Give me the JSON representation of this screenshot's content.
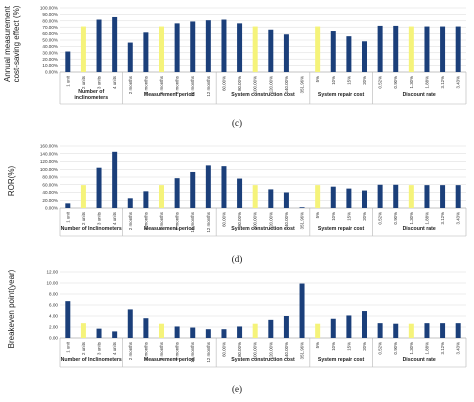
{
  "colors": {
    "dark": "#1b3f7a",
    "highlight": "#f5f37a",
    "grid": "#d9d9d9",
    "axis": "#9a9a9a",
    "separator": "#b5b5b5"
  },
  "x_categories": [
    "1 unit",
    "2 units",
    "3 units",
    "4 units",
    "2 months",
    "4 months",
    "6 months",
    "8 months",
    "10 months",
    "12 months",
    "60.00%",
    "80.00%",
    "100.00%",
    "120.00%",
    "140.00%",
    "351.96%",
    "5%",
    "10%",
    "15%",
    "20%",
    "0.52%",
    "0.90%",
    "1.30%",
    "1.88%",
    "3.12%",
    "3.43%"
  ],
  "groups": [
    {
      "label": "Number of Inclinometers",
      "label_c": "Number of\ninclinometers",
      "start": 0,
      "end": 3
    },
    {
      "label": "Measurement period",
      "start": 4,
      "end": 9
    },
    {
      "label": "System construction cost",
      "start": 10,
      "end": 15
    },
    {
      "label": "System repair cost",
      "start": 16,
      "end": 19
    },
    {
      "label": "Discount rate",
      "start": 20,
      "end": 25
    }
  ],
  "highlight_indices": [
    1,
    6,
    12,
    16,
    22
  ],
  "chart_data": [
    {
      "type": "bar",
      "panel_label": "(c)",
      "ylabel": "Annual measurement\ncost-saving effect (%)",
      "ylim": [
        0,
        100
      ],
      "yticks": [
        "0.00%",
        "10.00%",
        "20.00%",
        "30.00%",
        "40.00%",
        "50.00%",
        "60.00%",
        "70.00%",
        "80.00%",
        "90.00%",
        "100.00%"
      ],
      "ytick_values": [
        0,
        10,
        20,
        30,
        40,
        50,
        60,
        70,
        80,
        90,
        100
      ],
      "values": [
        32,
        71,
        82,
        86,
        46,
        62,
        71,
        76,
        79,
        81,
        82,
        76,
        71,
        66,
        59,
        null,
        71,
        64,
        56,
        48,
        72,
        72,
        71,
        71,
        71,
        71
      ]
    },
    {
      "type": "bar",
      "panel_label": "(d)",
      "ylabel": "ROR(%)",
      "ylim": [
        0,
        160
      ],
      "yticks": [
        "0.00%",
        "20.00%",
        "40.00%",
        "60.00%",
        "80.00%",
        "100.00%",
        "120.00%",
        "140.00%",
        "160.00%"
      ],
      "ytick_values": [
        0,
        20,
        40,
        60,
        80,
        100,
        120,
        140,
        160
      ],
      "values": [
        12,
        59,
        104,
        145,
        25,
        43,
        59,
        77,
        93,
        110,
        108,
        76,
        59,
        48,
        40,
        2,
        59,
        55,
        50,
        45,
        60,
        60,
        59,
        59,
        59,
        59
      ]
    },
    {
      "type": "bar",
      "panel_label": "(e)",
      "ylabel": "Breakeven point(year)",
      "ylim": [
        0,
        12
      ],
      "yticks": [
        "0.00",
        "2.00",
        "4.00",
        "6.00",
        "8.00",
        "10.00",
        "12.00"
      ],
      "ytick_values": [
        0,
        2,
        4,
        6,
        8,
        10,
        12
      ],
      "values": [
        6.7,
        2.7,
        1.7,
        1.2,
        5.2,
        3.6,
        2.6,
        2.1,
        1.9,
        1.6,
        1.6,
        2.1,
        2.6,
        3.3,
        4.0,
        9.9,
        2.6,
        3.5,
        4.1,
        4.9,
        2.7,
        2.6,
        2.6,
        2.7,
        2.7,
        2.7
      ]
    }
  ]
}
